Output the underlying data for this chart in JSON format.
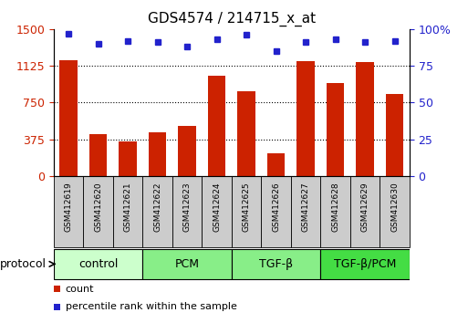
{
  "title": "GDS4574 / 214715_x_at",
  "samples": [
    "GSM412619",
    "GSM412620",
    "GSM412621",
    "GSM412622",
    "GSM412623",
    "GSM412624",
    "GSM412625",
    "GSM412626",
    "GSM412627",
    "GSM412628",
    "GSM412629",
    "GSM412630"
  ],
  "bar_values": [
    1180,
    430,
    355,
    450,
    510,
    1020,
    870,
    230,
    1175,
    950,
    1160,
    840
  ],
  "dot_values": [
    97,
    90,
    92,
    91,
    88,
    93,
    96,
    85,
    91,
    93,
    91,
    92
  ],
  "left_ylim": [
    0,
    1500
  ],
  "right_ylim": [
    0,
    100
  ],
  "left_yticks": [
    0,
    375,
    750,
    1125,
    1500
  ],
  "right_yticks": [
    0,
    25,
    50,
    75,
    100
  ],
  "bar_color": "#cc2200",
  "dot_color": "#2222cc",
  "background_color": "#ffffff",
  "groups": [
    {
      "label": "control",
      "start": 0,
      "end": 3,
      "color": "#ccffcc"
    },
    {
      "label": "PCM",
      "start": 3,
      "end": 6,
      "color": "#88ee88"
    },
    {
      "label": "TGF-β",
      "start": 6,
      "end": 9,
      "color": "#88ee88"
    },
    {
      "label": "TGF-β/PCM",
      "start": 9,
      "end": 12,
      "color": "#44dd44"
    }
  ],
  "group_colors": [
    "#ccffcc",
    "#88ee88",
    "#88ee88",
    "#44dd44"
  ],
  "protocol_label": "protocol",
  "legend_count_label": "count",
  "legend_pct_label": "percentile rank within the sample",
  "tick_label_color_left": "#cc2200",
  "tick_label_color_right": "#2222cc",
  "sample_box_color": "#cccccc"
}
